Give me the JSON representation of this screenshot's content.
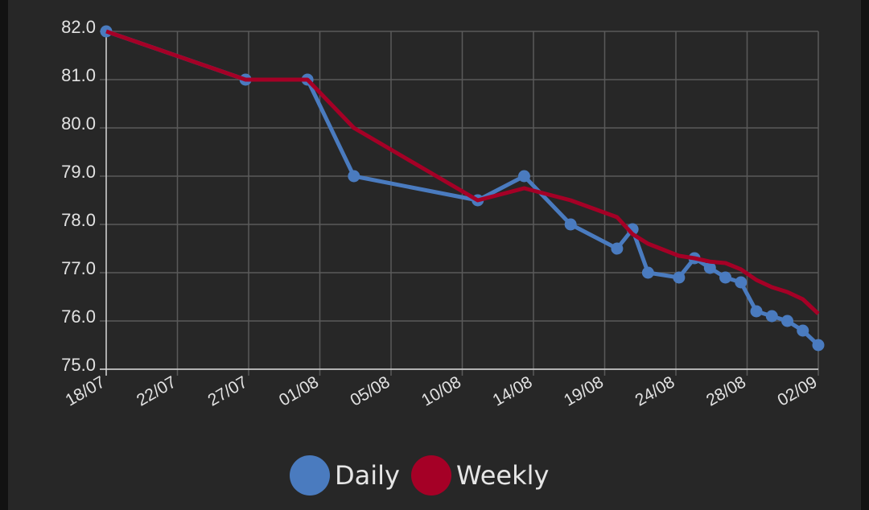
{
  "chart_data": {
    "type": "line",
    "title": "",
    "xlabel": "",
    "ylabel": "",
    "ylim": [
      75.0,
      82.0
    ],
    "xlim": [
      "18/07",
      "02/09"
    ],
    "grid": true,
    "legend_position": "bottom",
    "y_ticks": [
      "82.0",
      "81.0",
      "80.0",
      "79.0",
      "78.0",
      "77.0",
      "76.0",
      "75.0"
    ],
    "x_ticks": [
      "18/07",
      "22/07",
      "27/07",
      "01/08",
      "05/08",
      "10/08",
      "14/08",
      "19/08",
      "24/08",
      "28/08",
      "02/09"
    ],
    "series": [
      {
        "name": "Daily",
        "color": "#4a7bbf",
        "markers": true,
        "points": [
          {
            "x": "18/07",
            "y": 82.0
          },
          {
            "x": "27/07",
            "y": 81.0
          },
          {
            "x": "31/07",
            "y": 81.0
          },
          {
            "x": "03/08",
            "y": 79.0
          },
          {
            "x": "11/08",
            "y": 78.5
          },
          {
            "x": "14/08",
            "y": 79.0
          },
          {
            "x": "17/08",
            "y": 78.0
          },
          {
            "x": "20/08",
            "y": 77.5
          },
          {
            "x": "21/08",
            "y": 77.9
          },
          {
            "x": "22/08",
            "y": 77.0
          },
          {
            "x": "24/08",
            "y": 76.9
          },
          {
            "x": "25/08",
            "y": 77.3
          },
          {
            "x": "26/08",
            "y": 77.1
          },
          {
            "x": "27/08",
            "y": 76.9
          },
          {
            "x": "28/08",
            "y": 76.8
          },
          {
            "x": "29/08",
            "y": 76.2
          },
          {
            "x": "30/08",
            "y": 76.1
          },
          {
            "x": "31/08",
            "y": 76.0
          },
          {
            "x": "01/09",
            "y": 75.8
          },
          {
            "x": "02/09",
            "y": 75.5
          }
        ]
      },
      {
        "name": "Weekly",
        "color": "#a50026",
        "markers": false,
        "points": [
          {
            "x": "18/07",
            "y": 82.0
          },
          {
            "x": "27/07",
            "y": 81.0
          },
          {
            "x": "31/07",
            "y": 81.0
          },
          {
            "x": "03/08",
            "y": 80.0
          },
          {
            "x": "11/08",
            "y": 78.5
          },
          {
            "x": "14/08",
            "y": 78.75
          },
          {
            "x": "17/08",
            "y": 78.5
          },
          {
            "x": "20/08",
            "y": 78.15
          },
          {
            "x": "21/08",
            "y": 77.8
          },
          {
            "x": "22/08",
            "y": 77.6
          },
          {
            "x": "24/08",
            "y": 77.35
          },
          {
            "x": "25/08",
            "y": 77.3
          },
          {
            "x": "26/08",
            "y": 77.23
          },
          {
            "x": "27/08",
            "y": 77.2
          },
          {
            "x": "28/08",
            "y": 77.07
          },
          {
            "x": "29/08",
            "y": 76.85
          },
          {
            "x": "30/08",
            "y": 76.7
          },
          {
            "x": "31/08",
            "y": 76.6
          },
          {
            "x": "01/09",
            "y": 76.45
          },
          {
            "x": "02/09",
            "y": 76.15
          }
        ]
      }
    ]
  },
  "legend": {
    "items": [
      {
        "label": "Daily",
        "color": "#4a7bbf"
      },
      {
        "label": "Weekly",
        "color": "#a50026"
      }
    ]
  },
  "colors": {
    "background": "#272727",
    "outer_background": "#121212",
    "grid": "#5a5a5a",
    "axis": "#d8d8d8",
    "text": "#e2e2e2"
  }
}
